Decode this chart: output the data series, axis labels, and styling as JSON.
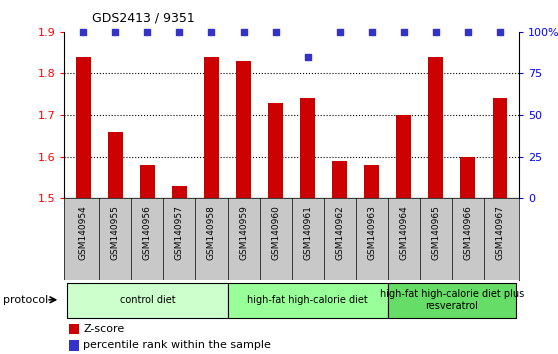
{
  "title": "GDS2413 / 9351",
  "samples": [
    "GSM140954",
    "GSM140955",
    "GSM140956",
    "GSM140957",
    "GSM140958",
    "GSM140959",
    "GSM140960",
    "GSM140961",
    "GSM140962",
    "GSM140963",
    "GSM140964",
    "GSM140965",
    "GSM140966",
    "GSM140967"
  ],
  "z_scores": [
    1.84,
    1.66,
    1.58,
    1.53,
    1.84,
    1.83,
    1.73,
    1.74,
    1.59,
    1.58,
    1.7,
    1.84,
    1.6,
    1.74
  ],
  "percentile_ranks": [
    100,
    100,
    100,
    100,
    100,
    100,
    100,
    85,
    100,
    100,
    100,
    100,
    100,
    100
  ],
  "bar_color": "#cc0000",
  "dot_color": "#3333cc",
  "ylim_left": [
    1.5,
    1.9
  ],
  "ylim_right": [
    0,
    100
  ],
  "yticks_left": [
    1.5,
    1.6,
    1.7,
    1.8,
    1.9
  ],
  "yticks_right": [
    0,
    25,
    50,
    75,
    100
  ],
  "ytick_labels_right": [
    "0",
    "25",
    "50",
    "75",
    "100%"
  ],
  "grid_lines": [
    1.6,
    1.7,
    1.8
  ],
  "groups": [
    {
      "label": "control diet",
      "start": 0,
      "end": 4,
      "color": "#ccffcc"
    },
    {
      "label": "high-fat high-calorie diet",
      "start": 5,
      "end": 9,
      "color": "#99ff99"
    },
    {
      "label": "high-fat high-calorie diet plus\nresveratrol",
      "start": 10,
      "end": 13,
      "color": "#66dd66"
    }
  ],
  "protocol_label": "protocol",
  "legend_items": [
    {
      "color": "#cc0000",
      "label": "Z-score"
    },
    {
      "color": "#3333cc",
      "label": "percentile rank within the sample"
    }
  ],
  "tick_area_color": "#c8c8c8",
  "bar_width": 0.45,
  "dot_size": 20
}
